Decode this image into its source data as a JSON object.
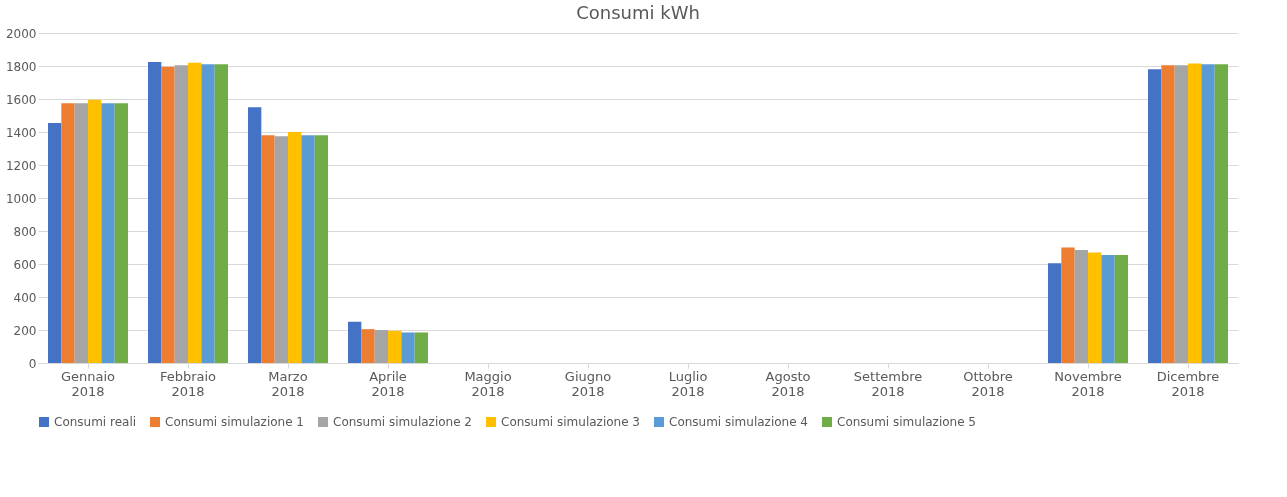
{
  "chart_data": {
    "type": "bar",
    "title": "Consumi kWh",
    "categories": [
      "Gennaio 2018",
      "Febbraio 2018",
      "Marzo 2018",
      "Aprile 2018",
      "Maggio 2018",
      "Giugno 2018",
      "Luglio 2018",
      "Agosto 2018",
      "Settembre 2018",
      "Ottobre 2018",
      "Novembre 2018",
      "Dicembre 2018"
    ],
    "series": [
      {
        "name": "Consumi reali",
        "color": "#4472c4",
        "values": [
          1455,
          1825,
          1550,
          250,
          0,
          0,
          0,
          0,
          0,
          0,
          605,
          1780
        ]
      },
      {
        "name": "Consumi simulazione 1",
        "color": "#ed7d31",
        "values": [
          1575,
          1795,
          1380,
          205,
          0,
          0,
          0,
          0,
          0,
          0,
          700,
          1805
        ]
      },
      {
        "name": "Consumi simulazione 2",
        "color": "#a5a5a5",
        "values": [
          1575,
          1805,
          1375,
          200,
          0,
          0,
          0,
          0,
          0,
          0,
          685,
          1805
        ]
      },
      {
        "name": "Consumi simulazione 3",
        "color": "#ffc000",
        "values": [
          1595,
          1820,
          1400,
          195,
          0,
          0,
          0,
          0,
          0,
          0,
          670,
          1815
        ]
      },
      {
        "name": "Consumi simulazione 4",
        "color": "#5b9bd5",
        "values": [
          1575,
          1810,
          1380,
          185,
          0,
          0,
          0,
          0,
          0,
          0,
          655,
          1810
        ]
      },
      {
        "name": "Consumi simulazione 5",
        "color": "#70ad47",
        "values": [
          1575,
          1810,
          1380,
          185,
          0,
          0,
          0,
          0,
          0,
          0,
          655,
          1810
        ]
      }
    ],
    "ylim": [
      0,
      2000
    ],
    "yticks": [
      0,
      200,
      400,
      600,
      800,
      1000,
      1200,
      1400,
      1600,
      1800,
      2000
    ],
    "grid": "y",
    "legend": "bottom"
  }
}
